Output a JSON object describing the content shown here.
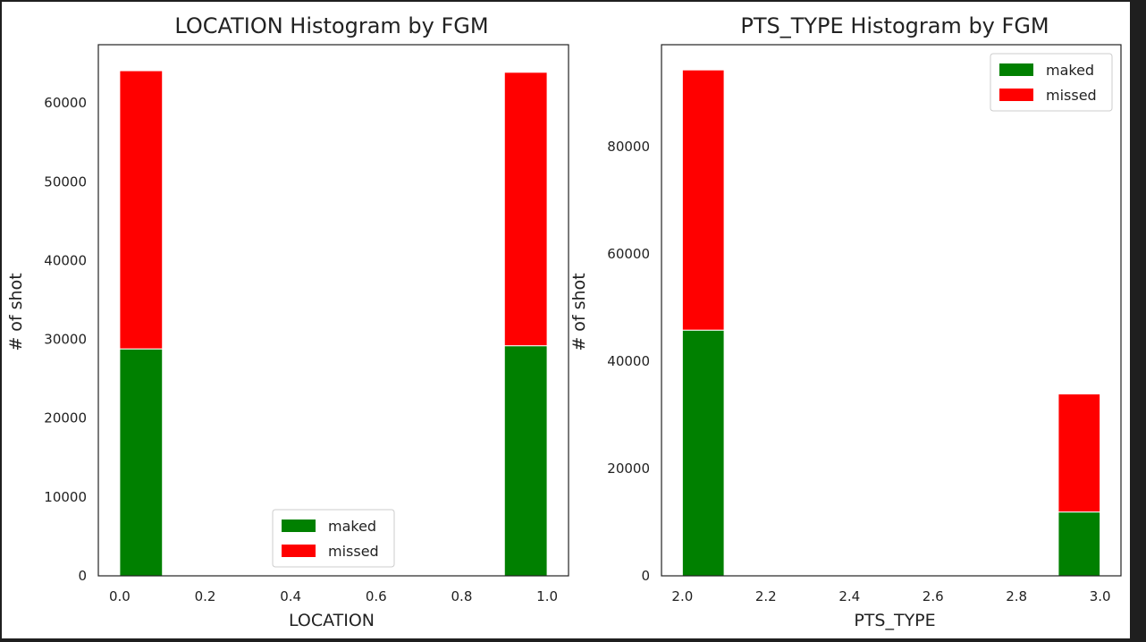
{
  "chart_data": [
    {
      "type": "bar",
      "stacked": true,
      "title": "LOCATION Histogram by FGM",
      "xlabel": "LOCATION",
      "ylabel": "# of shot",
      "xlim": [
        -0.05,
        1.05
      ],
      "ylim": [
        0,
        67400
      ],
      "xticks": [
        0.0,
        0.2,
        0.4,
        0.6,
        0.8,
        1.0
      ],
      "xtick_labels": [
        "0.0",
        "0.2",
        "0.4",
        "0.6",
        "0.8",
        "1.0"
      ],
      "yticks": [
        0,
        10000,
        20000,
        30000,
        40000,
        50000,
        60000
      ],
      "ytick_labels": [
        "0",
        "10000",
        "20000",
        "30000",
        "40000",
        "50000",
        "60000"
      ],
      "bins": [
        [
          0.0,
          0.1
        ],
        [
          0.9,
          1.0
        ]
      ],
      "series": [
        {
          "name": "maked",
          "color": "#008000",
          "values": [
            28800,
            29200
          ]
        },
        {
          "name": "missed",
          "color": "#ff0000",
          "values": [
            35300,
            34700
          ]
        }
      ],
      "legend_position": "lower-center",
      "grid": false
    },
    {
      "type": "bar",
      "stacked": true,
      "title": "PTS_TYPE Histogram by FGM",
      "xlabel": "PTS_TYPE",
      "ylabel": "# of shot",
      "xlim": [
        1.95,
        3.05
      ],
      "ylim": [
        0,
        99000
      ],
      "xticks": [
        2.0,
        2.2,
        2.4,
        2.6,
        2.8,
        3.0
      ],
      "xtick_labels": [
        "2.0",
        "2.2",
        "2.4",
        "2.6",
        "2.8",
        "3.0"
      ],
      "yticks": [
        0,
        20000,
        40000,
        60000,
        80000
      ],
      "ytick_labels": [
        "0",
        "20000",
        "40000",
        "60000",
        "80000"
      ],
      "bins": [
        [
          2.0,
          2.1
        ],
        [
          2.9,
          3.0
        ]
      ],
      "series": [
        {
          "name": "maked",
          "color": "#008000",
          "values": [
            45800,
            11900
          ]
        },
        {
          "name": "missed",
          "color": "#ff0000",
          "values": [
            48500,
            22000
          ]
        }
      ],
      "legend_position": "upper-right",
      "grid": false
    }
  ]
}
